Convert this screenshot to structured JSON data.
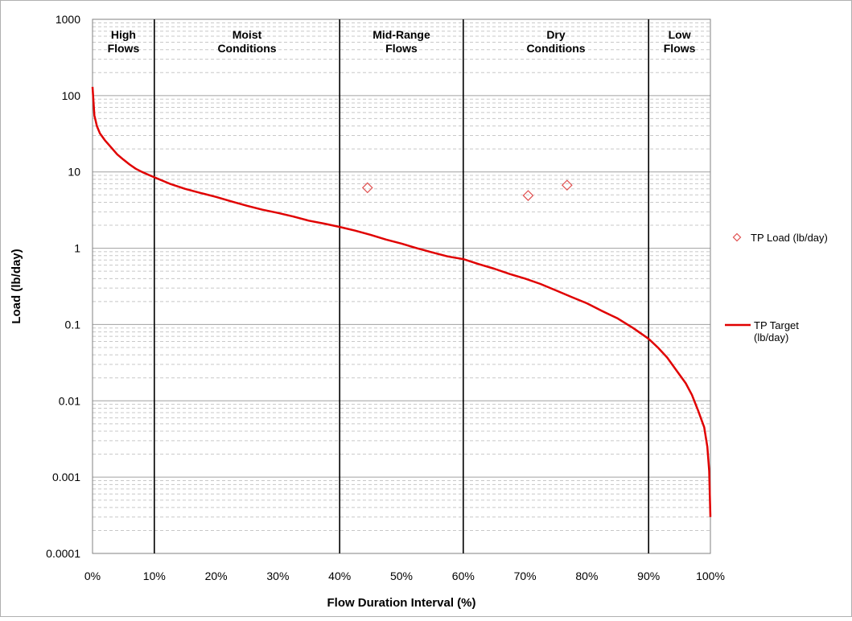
{
  "chart_data": {
    "type": "line",
    "xlabel": "Flow Duration Interval (%)",
    "ylabel": "Load (lb/day)",
    "xlim": [
      0,
      100
    ],
    "ylim": [
      0.0001,
      1000
    ],
    "y_scale": "log",
    "grid": "horizontal major and minor gridlines",
    "legend_position": "right",
    "x_ticks": [
      "0%",
      "10%",
      "20%",
      "30%",
      "40%",
      "50%",
      "60%",
      "70%",
      "80%",
      "90%",
      "100%"
    ],
    "y_ticks": [
      "0.0001",
      "0.001",
      "0.01",
      "0.1",
      "1",
      "10",
      "100",
      "1000"
    ],
    "zone_boundaries": [
      10,
      40,
      60,
      90
    ],
    "zones": [
      {
        "label": [
          "High",
          "Flows"
        ],
        "from": 0,
        "to": 10
      },
      {
        "label": [
          "Moist",
          "Conditions"
        ],
        "from": 10,
        "to": 40
      },
      {
        "label": [
          "Mid-Range",
          "Flows"
        ],
        "from": 40,
        "to": 60
      },
      {
        "label": [
          "Dry",
          "Conditions"
        ],
        "from": 60,
        "to": 90
      },
      {
        "label": [
          "Low",
          "Flows"
        ],
        "from": 90,
        "to": 100
      }
    ],
    "series": [
      {
        "name": "TP Load (lb/day)",
        "kind": "scatter",
        "marker": "diamond-open",
        "color": "#e05050",
        "legend_lines": [
          "TP Load (lb/day)"
        ],
        "points": [
          [
            44.5,
            6.2
          ],
          [
            70.5,
            4.9
          ],
          [
            76.8,
            6.7
          ]
        ]
      },
      {
        "name": "TP Target (lb/day)",
        "kind": "line",
        "color": "#e00000",
        "legend_lines": [
          "TP Target",
          "(lb/day)"
        ],
        "points": [
          [
            0,
            130
          ],
          [
            0.3,
            55
          ],
          [
            0.7,
            40
          ],
          [
            1.2,
            32
          ],
          [
            2,
            26
          ],
          [
            3,
            21
          ],
          [
            4,
            17
          ],
          [
            5,
            14.5
          ],
          [
            6,
            12.5
          ],
          [
            7,
            11
          ],
          [
            8,
            10
          ],
          [
            9,
            9.2
          ],
          [
            10,
            8.5
          ],
          [
            12.5,
            7
          ],
          [
            15,
            6
          ],
          [
            17.5,
            5.3
          ],
          [
            20,
            4.7
          ],
          [
            22.5,
            4.1
          ],
          [
            25,
            3.6
          ],
          [
            27.5,
            3.2
          ],
          [
            30,
            2.9
          ],
          [
            32.5,
            2.6
          ],
          [
            35,
            2.3
          ],
          [
            37.5,
            2.1
          ],
          [
            40,
            1.9
          ],
          [
            42.5,
            1.7
          ],
          [
            45,
            1.5
          ],
          [
            47.5,
            1.3
          ],
          [
            50,
            1.15
          ],
          [
            52.5,
            1.0
          ],
          [
            55,
            0.88
          ],
          [
            57.5,
            0.78
          ],
          [
            60,
            0.72
          ],
          [
            62.5,
            0.62
          ],
          [
            65,
            0.54
          ],
          [
            67.5,
            0.46
          ],
          [
            70,
            0.4
          ],
          [
            72.5,
            0.34
          ],
          [
            75,
            0.28
          ],
          [
            77.5,
            0.23
          ],
          [
            80,
            0.19
          ],
          [
            82.5,
            0.15
          ],
          [
            85,
            0.12
          ],
          [
            87.5,
            0.09
          ],
          [
            90,
            0.065
          ],
          [
            91.5,
            0.05
          ],
          [
            93,
            0.037
          ],
          [
            94.5,
            0.025
          ],
          [
            96,
            0.017
          ],
          [
            97,
            0.012
          ],
          [
            98,
            0.0075
          ],
          [
            99,
            0.0045
          ],
          [
            99.5,
            0.0025
          ],
          [
            99.8,
            0.0012
          ],
          [
            100,
            0.0003
          ]
        ]
      }
    ]
  }
}
